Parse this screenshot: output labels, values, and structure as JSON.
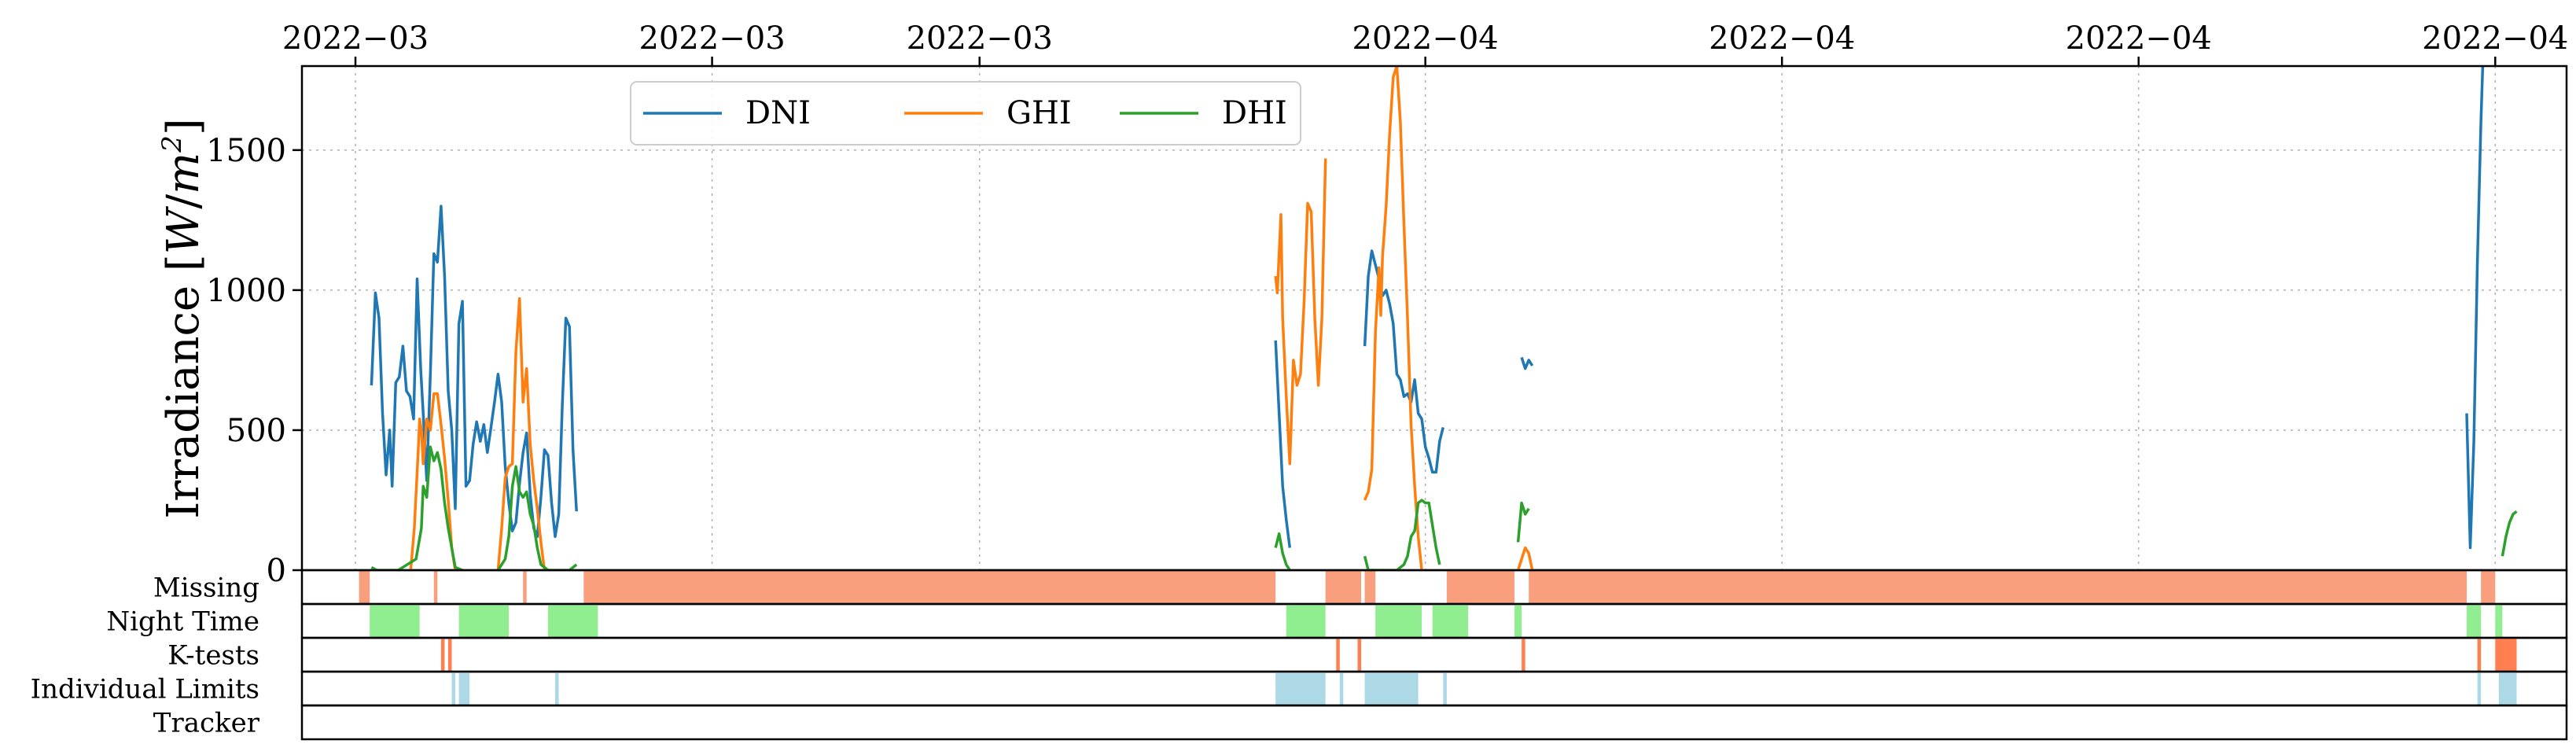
{
  "chart_data": {
    "type": "line",
    "title": "",
    "ylabel": "Irradiance [W/m²]",
    "ylabel_parts": {
      "main": "Irradiance [",
      "unit_var": "W",
      "sep": "/",
      "unit_base": "m",
      "unit_exp": "2",
      "close": "]"
    },
    "xlabel": "",
    "x_tick_labels": [
      "2022−03",
      "2022−03",
      "2022−03",
      "2022−04",
      "2022−04",
      "2022−04",
      "2022−04"
    ],
    "x_tick_positions": [
      0.8,
      1.8,
      2.55,
      3.8,
      4.8,
      5.8,
      6.8
    ],
    "x_range": [
      0.65,
      7.0
    ],
    "ylim": [
      0,
      1800
    ],
    "y_ticks": [
      0,
      500,
      1000,
      1500
    ],
    "grid": true,
    "legend_position": "top-left",
    "legend": [
      "DNI",
      "GHI",
      "DHI"
    ],
    "colors": {
      "DNI": "#1f77b4",
      "GHI": "#ff7f0e",
      "DHI": "#2ca02c"
    },
    "series": [
      {
        "name": "DNI",
        "segments": [
          [
            [
              0.845,
              660
            ],
            [
              0.856,
              990
            ],
            [
              0.866,
              900
            ],
            [
              0.876,
              560
            ],
            [
              0.886,
              340
            ],
            [
              0.896,
              500
            ],
            [
              0.903,
              300
            ],
            [
              0.913,
              670
            ],
            [
              0.923,
              690
            ],
            [
              0.933,
              800
            ],
            [
              0.943,
              640
            ],
            [
              0.953,
              620
            ],
            [
              0.963,
              540
            ],
            [
              0.973,
              1040
            ],
            [
              0.983,
              720
            ],
            [
              0.99,
              560
            ],
            [
              1.0,
              320
            ],
            [
              1.01,
              700
            ],
            [
              1.02,
              1130
            ],
            [
              1.03,
              1100
            ],
            [
              1.04,
              1300
            ],
            [
              1.05,
              1050
            ],
            [
              1.06,
              640
            ],
            [
              1.07,
              500
            ],
            [
              1.08,
              220
            ],
            [
              1.09,
              880
            ],
            [
              1.1,
              960
            ],
            [
              1.11,
              300
            ],
            [
              1.12,
              320
            ],
            [
              1.13,
              450
            ],
            [
              1.14,
              530
            ],
            [
              1.15,
              460
            ],
            [
              1.16,
              520
            ],
            [
              1.17,
              420
            ],
            [
              1.18,
              510
            ],
            [
              1.19,
              600
            ],
            [
              1.2,
              700
            ],
            [
              1.21,
              600
            ],
            [
              1.22,
              370
            ],
            [
              1.23,
              240
            ],
            [
              1.24,
              140
            ],
            [
              1.25,
              170
            ],
            [
              1.26,
              310
            ],
            [
              1.27,
              420
            ],
            [
              1.28,
              490
            ],
            [
              1.29,
              270
            ],
            [
              1.3,
              150
            ],
            [
              1.31,
              120
            ],
            [
              1.32,
              260
            ],
            [
              1.33,
              430
            ],
            [
              1.34,
              410
            ],
            [
              1.35,
              240
            ],
            [
              1.36,
              120
            ],
            [
              1.37,
              200
            ],
            [
              1.38,
              590
            ],
            [
              1.39,
              900
            ],
            [
              1.4,
              870
            ],
            [
              1.41,
              430
            ],
            [
              1.42,
              210
            ]
          ],
          [
            [
              3.38,
              820
            ],
            [
              3.39,
              560
            ],
            [
              3.4,
              300
            ],
            [
              3.41,
              180
            ],
            [
              3.42,
              80
            ]
          ],
          [
            [
              3.63,
              800
            ],
            [
              3.64,
              1050
            ],
            [
              3.65,
              1140
            ],
            [
              3.66,
              1090
            ],
            [
              3.67,
              1040
            ],
            [
              3.68,
              980
            ],
            [
              3.69,
              1000
            ],
            [
              3.7,
              950
            ],
            [
              3.71,
              880
            ],
            [
              3.72,
              700
            ],
            [
              3.73,
              680
            ],
            [
              3.74,
              620
            ],
            [
              3.75,
              630
            ],
            [
              3.76,
              600
            ],
            [
              3.77,
              680
            ],
            [
              3.78,
              560
            ],
            [
              3.79,
              540
            ],
            [
              3.8,
              440
            ],
            [
              3.81,
              400
            ],
            [
              3.82,
              350
            ],
            [
              3.83,
              350
            ],
            [
              3.84,
              460
            ],
            [
              3.85,
              510
            ]
          ],
          [
            [
              4.07,
              760
            ],
            [
              4.08,
              720
            ],
            [
              4.09,
              750
            ],
            [
              4.1,
              730
            ]
          ],
          [
            [
              6.72,
              560
            ],
            [
              6.73,
              80
            ],
            [
              6.74,
              460
            ],
            [
              6.75,
              1100
            ],
            [
              6.76,
              1600
            ],
            [
              6.765,
              1800
            ]
          ]
        ]
      },
      {
        "name": "GHI",
        "segments": [
          [
            [
              0.955,
              0
            ],
            [
              0.965,
              150
            ],
            [
              0.975,
              400
            ],
            [
              0.98,
              540
            ],
            [
              0.985,
              500
            ],
            [
              0.99,
              380
            ],
            [
              1.0,
              540
            ],
            [
              1.01,
              500
            ],
            [
              1.02,
              630
            ],
            [
              1.03,
              630
            ],
            [
              1.04,
              520
            ],
            [
              1.05,
              400
            ],
            [
              1.06,
              250
            ],
            [
              1.07,
              80
            ],
            [
              1.08,
              0
            ]
          ],
          [
            [
              1.2,
              0
            ],
            [
              1.21,
              150
            ],
            [
              1.22,
              330
            ],
            [
              1.23,
              370
            ],
            [
              1.24,
              380
            ],
            [
              1.25,
              780
            ],
            [
              1.26,
              970
            ],
            [
              1.27,
              600
            ],
            [
              1.28,
              720
            ],
            [
              1.29,
              450
            ],
            [
              1.3,
              320
            ],
            [
              1.31,
              220
            ],
            [
              1.32,
              100
            ],
            [
              1.33,
              0
            ]
          ],
          [
            [
              3.38,
              1050
            ],
            [
              3.385,
              990
            ],
            [
              3.395,
              1270
            ],
            [
              3.4,
              900
            ],
            [
              3.41,
              620
            ],
            [
              3.42,
              380
            ],
            [
              3.43,
              750
            ],
            [
              3.44,
              660
            ],
            [
              3.45,
              700
            ],
            [
              3.46,
              960
            ],
            [
              3.47,
              1310
            ],
            [
              3.48,
              1280
            ],
            [
              3.49,
              900
            ],
            [
              3.5,
              660
            ],
            [
              3.51,
              900
            ],
            [
              3.52,
              1470
            ]
          ],
          [
            [
              3.63,
              250
            ],
            [
              3.64,
              280
            ],
            [
              3.65,
              360
            ],
            [
              3.66,
              850
            ],
            [
              3.67,
              1080
            ],
            [
              3.675,
              910
            ],
            [
              3.68,
              1120
            ],
            [
              3.69,
              1300
            ],
            [
              3.7,
              1560
            ],
            [
              3.71,
              1760
            ],
            [
              3.72,
              1800
            ],
            [
              3.73,
              1600
            ],
            [
              3.74,
              1240
            ],
            [
              3.75,
              900
            ],
            [
              3.76,
              520
            ],
            [
              3.77,
              300
            ],
            [
              3.78,
              120
            ],
            [
              3.79,
              0
            ]
          ],
          [
            [
              4.06,
              0
            ],
            [
              4.07,
              40
            ],
            [
              4.08,
              80
            ],
            [
              4.09,
              60
            ],
            [
              4.1,
              0
            ]
          ]
        ]
      },
      {
        "name": "DHI",
        "segments": [
          [
            [
              0.845,
              10
            ],
            [
              0.86,
              0
            ],
            [
              0.92,
              0
            ],
            [
              0.97,
              40
            ],
            [
              0.985,
              150
            ],
            [
              0.99,
              300
            ],
            [
              1.0,
              260
            ],
            [
              1.01,
              440
            ],
            [
              1.02,
              390
            ],
            [
              1.03,
              420
            ],
            [
              1.04,
              360
            ],
            [
              1.05,
              240
            ],
            [
              1.06,
              150
            ],
            [
              1.07,
              80
            ],
            [
              1.08,
              10
            ],
            [
              1.1,
              0
            ]
          ],
          [
            [
              1.2,
              0
            ],
            [
              1.22,
              40
            ],
            [
              1.23,
              120
            ],
            [
              1.24,
              300
            ],
            [
              1.25,
              370
            ],
            [
              1.26,
              280
            ],
            [
              1.27,
              260
            ],
            [
              1.28,
              280
            ],
            [
              1.29,
              200
            ],
            [
              1.3,
              160
            ],
            [
              1.31,
              80
            ],
            [
              1.32,
              20
            ],
            [
              1.34,
              0
            ],
            [
              1.4,
              0
            ],
            [
              1.42,
              20
            ]
          ],
          [
            [
              3.38,
              80
            ],
            [
              3.39,
              130
            ],
            [
              3.4,
              60
            ],
            [
              3.41,
              20
            ],
            [
              3.42,
              0
            ]
          ],
          [
            [
              3.63,
              50
            ],
            [
              3.64,
              0
            ],
            [
              3.72,
              0
            ],
            [
              3.74,
              20
            ],
            [
              3.75,
              50
            ],
            [
              3.76,
              120
            ],
            [
              3.77,
              140
            ],
            [
              3.78,
              240
            ],
            [
              3.79,
              250
            ],
            [
              3.8,
              240
            ],
            [
              3.81,
              240
            ],
            [
              3.82,
              160
            ],
            [
              3.83,
              80
            ],
            [
              3.84,
              20
            ]
          ],
          [
            [
              4.06,
              100
            ],
            [
              4.07,
              240
            ],
            [
              4.08,
              200
            ],
            [
              4.09,
              220
            ]
          ],
          [
            [
              6.82,
              50
            ],
            [
              6.83,
              120
            ],
            [
              6.84,
              170
            ],
            [
              6.85,
              200
            ],
            [
              6.86,
              210
            ]
          ]
        ]
      }
    ],
    "flag_rows": [
      {
        "label": "Missing",
        "color": "#fa9f7e",
        "intervals": [
          [
            0.81,
            0.84
          ],
          [
            1.02,
            1.03
          ],
          [
            1.27,
            1.28
          ],
          [
            1.44,
            3.38
          ],
          [
            3.52,
            3.62
          ],
          [
            3.63,
            3.66
          ],
          [
            3.86,
            4.05
          ],
          [
            4.09,
            6.72
          ],
          [
            6.76,
            6.8
          ]
        ]
      },
      {
        "label": "Night Time",
        "color": "#90ee90",
        "intervals": [
          [
            0.84,
            0.98
          ],
          [
            1.09,
            1.23
          ],
          [
            1.34,
            1.48
          ],
          [
            3.41,
            3.52
          ],
          [
            3.66,
            3.79
          ],
          [
            3.82,
            3.92
          ],
          [
            4.05,
            4.07
          ],
          [
            6.72,
            6.76
          ],
          [
            6.8,
            6.82
          ]
        ]
      },
      {
        "label": "K-tests",
        "color": "#ff7f50",
        "intervals": [
          [
            1.04,
            1.05
          ],
          [
            1.06,
            1.07
          ],
          [
            3.55,
            3.56
          ],
          [
            3.61,
            3.62
          ],
          [
            4.07,
            4.08
          ],
          [
            6.75,
            6.76
          ],
          [
            6.8,
            6.86
          ]
        ]
      },
      {
        "label": "Individual Limits",
        "color": "#add8e6",
        "intervals": [
          [
            1.07,
            1.08
          ],
          [
            1.09,
            1.12
          ],
          [
            1.36,
            1.37
          ],
          [
            3.38,
            3.52
          ],
          [
            3.56,
            3.57
          ],
          [
            3.63,
            3.78
          ],
          [
            3.85,
            3.86
          ],
          [
            6.75,
            6.76
          ],
          [
            6.81,
            6.86
          ]
        ]
      },
      {
        "label": "Tracker",
        "color": "#add8e6",
        "intervals": []
      }
    ]
  }
}
